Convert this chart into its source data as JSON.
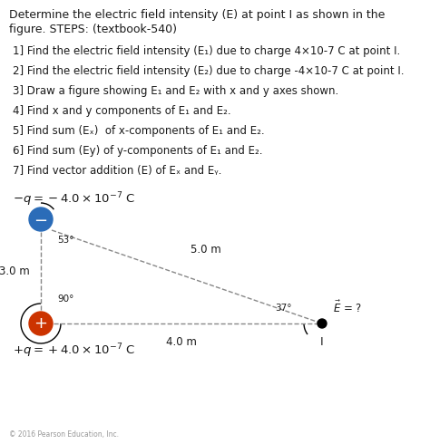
{
  "title_line1": "Determine the electric field intensity (E) at point I as shown in the",
  "title_line2": "figure. STEPS: (textbook-540)",
  "steps": [
    "1] Find the electric field intensity (E₁) due to charge 4×10-7 C at point I.",
    "2] Find the electric field intensity (E₂) due to charge -4×10-7 C at point I.",
    "3] Draw a figure showing E₁ and E₂ with x and y axes shown.",
    "4] Find x and y components of E₁ and E₂.",
    "5] Find sum (Eₓ)  of x-components of E₁ and E₂.",
    "6] Find sum (Ey) of y-components of E₁ and E₂.",
    "7] Find vector addition (E) of Eₓ and Eᵧ."
  ],
  "neg_charge_label": "$-q = -4.0 \\times 10^{-7}$ C",
  "pos_charge_label": "$+q = +4.0 \\times 10^{-7}$ C",
  "angle_53": "53°",
  "angle_37": "37°",
  "angle_90": "90°",
  "dist_50": "5.0 m",
  "dist_40": "4.0 m",
  "dist_30": "3.0 m",
  "E_label": "$\\vec{E}$ = ?",
  "background_color": "#ffffff",
  "text_color": "#1a1a1a",
  "neg_circle_color": "#2b6cb8",
  "pos_circle_color": "#cc3300",
  "dashed_color": "#888888",
  "footer": "© 2016 Pearson Education, Inc."
}
